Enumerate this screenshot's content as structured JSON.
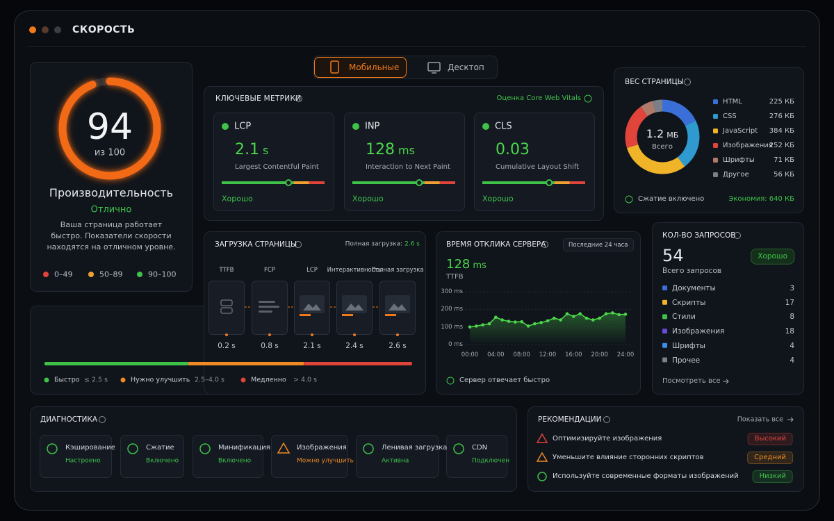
{
  "window": {
    "title": "СКОРОСТЬ"
  },
  "tabs": [
    {
      "label": "Мобильные",
      "active": true
    },
    {
      "label": "Десктоп",
      "active": false
    }
  ],
  "score": {
    "value": 94,
    "max": 100,
    "max_label": "из 100",
    "title": "Производительность",
    "status": "Отлично",
    "description": "Ваша страница работает быстро. Показатели скорости находятся на отличном уровне.",
    "legend": [
      {
        "label": "0–49",
        "color": "#e0443a"
      },
      {
        "label": "50–89",
        "color": "#f0a030"
      },
      {
        "label": "90–100",
        "color": "#3fc24a"
      }
    ]
  },
  "key_metrics": {
    "title": "КЛЮЧЕВЫЕ МЕТРИКИ",
    "badge": "Оценка Core Web Vitals",
    "items": [
      {
        "name": "LCP",
        "value": 2.1,
        "unit": "s",
        "description": "Largest Contentful Paint",
        "status": "Хорошо"
      },
      {
        "name": "INP",
        "value": 128,
        "unit": "ms",
        "description": "Interaction to Next Paint",
        "status": "Хорошо"
      },
      {
        "name": "CLS",
        "value": "0.03",
        "description": "Cumulative Layout Shift",
        "status": "Хорошо"
      }
    ]
  },
  "page_weight": {
    "title": "ВЕС СТРАНИЦЫ",
    "total": 1.2,
    "unit": "МБ",
    "total_label": "Всего",
    "items": [
      {
        "name": "HTML",
        "value": 225,
        "label": "225 КБ",
        "color": "#3b6fd8"
      },
      {
        "name": "CSS",
        "value": 276,
        "label": "276 КБ",
        "color": "#2f9ad0"
      },
      {
        "name": "JavaScript",
        "value": 384,
        "label": "384 КБ",
        "color": "#f0b429"
      },
      {
        "name": "Изображения",
        "value": 252,
        "label": "252 КБ",
        "color": "#e0443a"
      },
      {
        "name": "Шрифты",
        "value": 71,
        "label": "71 КБ",
        "color": "#b07a6a"
      },
      {
        "name": "Другое",
        "value": 56,
        "label": "56 КБ",
        "color": "#7a7f88"
      }
    ],
    "compression": "Сжатие включено",
    "savings": "Экономия: 640 КБ"
  },
  "page_load": {
    "title": "ЗАГРУЗКА СТРАНИЦЫ",
    "total_label": "Полная загрузка:",
    "total": "2.6 s",
    "stages": [
      {
        "name": "TTFB",
        "time": "0.2 s"
      },
      {
        "name": "FCP",
        "time": "0.8 s"
      },
      {
        "name": "LCP",
        "time": "2.1 s"
      },
      {
        "name": "Интерактивность",
        "time": "2.4 s"
      },
      {
        "name": "Полная загрузка",
        "time": "2.6 s"
      }
    ],
    "legend": [
      {
        "label": "Быстро",
        "range": "≤ 2.5 s",
        "color": "#3fc24a"
      },
      {
        "label": "Нужно улучшить",
        "range": "2.5–4.0 s",
        "color": "#f08a24"
      },
      {
        "label": "Медленно",
        "range": "> 4.0 s",
        "color": "#e0443a"
      }
    ]
  },
  "server_response": {
    "title": "ВРЕМЯ ОТКЛИКА СЕРВЕРА",
    "period": "Последние 24 часа",
    "value": 128,
    "unit": "ms",
    "metric": "TTFB",
    "footer": "Сервер отвечает быстро",
    "chart": {
      "type": "line",
      "color": "#4cd64a",
      "x": [
        0,
        1,
        2,
        3,
        4,
        5,
        6,
        7,
        8,
        9,
        10,
        11,
        12,
        13,
        14,
        15,
        16,
        17,
        18,
        19,
        20,
        21,
        22,
        23,
        24
      ],
      "values": [
        100,
        105,
        112,
        118,
        155,
        140,
        132,
        128,
        130,
        105,
        118,
        125,
        135,
        150,
        140,
        175,
        160,
        175,
        150,
        140,
        150,
        175,
        180,
        170,
        172
      ],
      "xlim": [
        0,
        24
      ],
      "xticks": [
        {
          "value": 0,
          "label": "00:00"
        },
        {
          "value": 4,
          "label": "04:00"
        },
        {
          "value": 8,
          "label": "08:00"
        },
        {
          "value": 12,
          "label": "12:00"
        },
        {
          "value": 16,
          "label": "16:00"
        },
        {
          "value": 20,
          "label": "20:00"
        },
        {
          "value": 24,
          "label": "24:00"
        }
      ],
      "ylim": [
        0,
        300
      ],
      "yticks": [
        {
          "value": 0,
          "label": "0 ms"
        },
        {
          "value": 100,
          "label": "100 ms"
        },
        {
          "value": 200,
          "label": "200 ms"
        },
        {
          "value": 300,
          "label": "300 ms"
        }
      ]
    }
  },
  "requests": {
    "title": "КОЛ-ВО ЗАПРОСОВ",
    "total": 54,
    "total_label": "Всего запросов",
    "status": "Хорошо",
    "link": "Посмотреть все",
    "items": [
      {
        "name": "Документы",
        "value": 3,
        "color": "#3b6fd8"
      },
      {
        "name": "Скрипты",
        "value": 17,
        "color": "#f0b429"
      },
      {
        "name": "Стили",
        "value": 8,
        "color": "#3fc24a"
      },
      {
        "name": "Изображения",
        "value": 18,
        "color": "#6a4ad8"
      },
      {
        "name": "Шрифты",
        "value": 4,
        "color": "#3b8fe8"
      },
      {
        "name": "Прочее",
        "value": 4,
        "color": "#7a7f88"
      }
    ]
  },
  "diagnostics": {
    "title": "ДИАГНОСТИКА",
    "items": [
      {
        "name": "Кэширование",
        "status": "Настроено",
        "color": "#3fc24a"
      },
      {
        "name": "Сжатие",
        "status": "Включено",
        "color": "#3fc24a"
      },
      {
        "name": "Минификация",
        "status": "Включено",
        "color": "#3fc24a"
      },
      {
        "name": "Изображения",
        "status": "Можно улучшить",
        "color": "#f08a24"
      },
      {
        "name": "Ленивая загрузка",
        "status": "Активна",
        "color": "#3fc24a"
      },
      {
        "name": "CDN",
        "status": "Подключен",
        "color": "#3fc24a"
      }
    ]
  },
  "recommendations": {
    "title": "РЕКОМЕНДАЦИИ",
    "link": "Показать все",
    "items": [
      {
        "text": "Оптимизируйте изображения",
        "priority": "Высокий",
        "color": "#e0443a"
      },
      {
        "text": "Уменьшите влияние сторонних скриптов",
        "priority": "Средний",
        "color": "#f08a24"
      },
      {
        "text": "Используйте современные форматы изображений",
        "priority": "Низкий",
        "color": "#3fc24a"
      }
    ]
  }
}
